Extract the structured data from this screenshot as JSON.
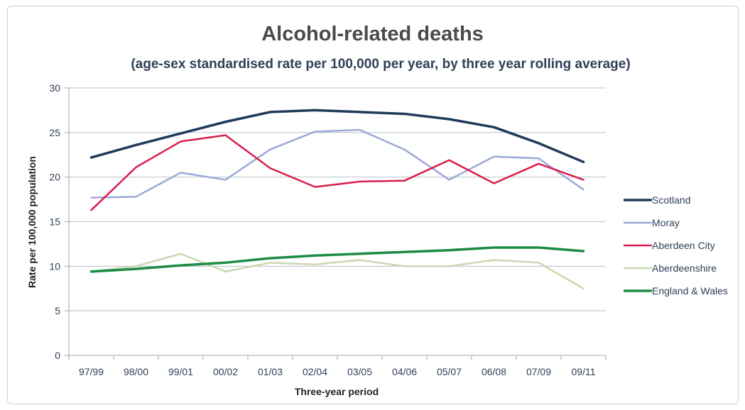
{
  "chart_data": {
    "type": "line",
    "title": "Alcohol-related deaths",
    "subtitle": "(age-sex standardised rate per 100,000 per year, by three year rolling average)",
    "xlabel": "Three-year period",
    "ylabel": "Rate per 100,000 population",
    "ylim": [
      0,
      30
    ],
    "yticks": [
      0,
      5,
      10,
      15,
      20,
      25,
      30
    ],
    "grid": true,
    "legend_position": "right",
    "categories": [
      "97/99",
      "98/00",
      "99/01",
      "00/02",
      "01/03",
      "02/04",
      "03/05",
      "04/06",
      "05/07",
      "06/08",
      "07/09",
      "09/11"
    ],
    "series": [
      {
        "name": "Scotland",
        "color": "#1f3a5a",
        "values": [
          22.2,
          23.6,
          24.9,
          26.2,
          27.3,
          27.5,
          27.3,
          27.1,
          26.5,
          25.6,
          23.8,
          21.7
        ]
      },
      {
        "name": "Moray",
        "color": "#9ba9d6",
        "values": [
          17.7,
          17.8,
          20.5,
          19.7,
          23.1,
          25.1,
          25.3,
          23.1,
          19.7,
          22.3,
          22.1,
          18.6
        ]
      },
      {
        "name": "Aberdeen City",
        "color": "#d91d4c",
        "values": [
          16.3,
          21.1,
          24.0,
          24.7,
          21.0,
          18.9,
          19.5,
          19.6,
          21.9,
          19.3,
          21.5,
          19.7
        ]
      },
      {
        "name": "Aberdeenshire",
        "color": "#c9d8b0",
        "values": [
          9.4,
          10.0,
          11.4,
          9.4,
          10.4,
          10.2,
          10.7,
          10.0,
          10.0,
          10.7,
          10.4,
          7.5
        ]
      },
      {
        "name": "England & Wales",
        "color": "#1e8b45",
        "values": [
          9.4,
          9.7,
          10.1,
          10.4,
          10.9,
          11.2,
          11.4,
          11.6,
          11.8,
          12.1,
          12.1,
          11.7
        ]
      }
    ]
  }
}
